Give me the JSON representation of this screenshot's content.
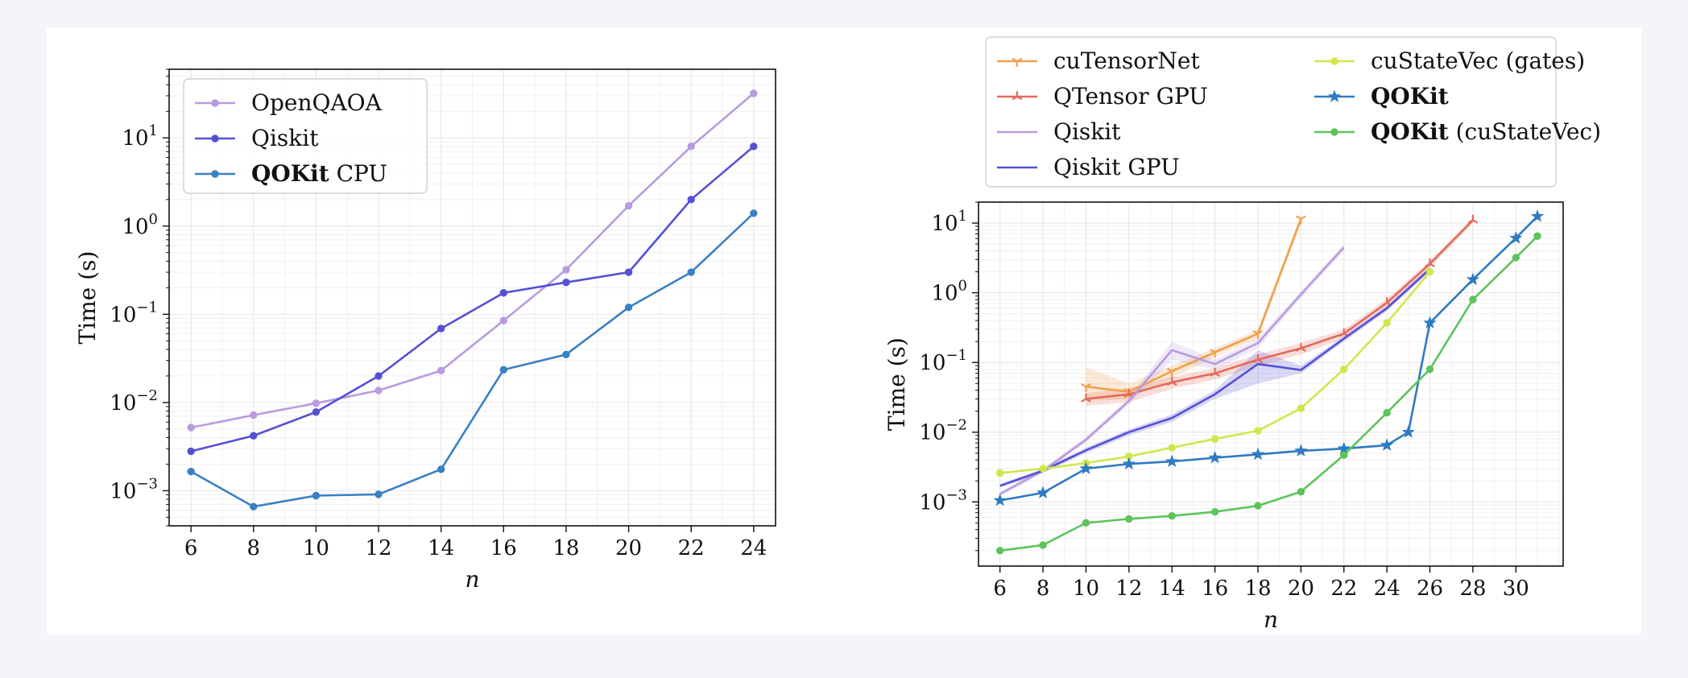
{
  "chart_data": [
    {
      "type": "line",
      "xlabel": "n",
      "ylabel": "Time (s)",
      "yscale": "log",
      "ylim": [
        0.0004,
        60
      ],
      "xlim": [
        5.3,
        24.7
      ],
      "x_ticks": [
        6,
        8,
        10,
        12,
        14,
        16,
        18,
        20,
        22,
        24
      ],
      "y_ticks": [
        {
          "value": 0.001,
          "base": "10",
          "exp": "−3"
        },
        {
          "value": 0.01,
          "base": "10",
          "exp": "−2"
        },
        {
          "value": 0.1,
          "base": "10",
          "exp": "−1"
        },
        {
          "value": 1,
          "base": "10",
          "exp": "0"
        },
        {
          "value": 10,
          "base": "10",
          "exp": "1"
        }
      ],
      "grid": true,
      "legend_position": "upper-left",
      "series": [
        {
          "name": "OpenQAOA",
          "name_parts": [
            {
              "text": "OpenQAOA",
              "bold": false
            }
          ],
          "color": "#b89be0",
          "marker": "circle",
          "x": [
            6,
            8,
            10,
            12,
            14,
            16,
            18,
            20,
            22,
            24
          ],
          "values": [
            0.0052,
            0.0072,
            0.0098,
            0.0137,
            0.023,
            0.085,
            0.32,
            1.7,
            8.0,
            32.0
          ]
        },
        {
          "name": "Qiskit",
          "name_parts": [
            {
              "text": "Qiskit",
              "bold": false
            }
          ],
          "color": "#5550d6",
          "marker": "circle",
          "x": [
            6,
            8,
            10,
            12,
            14,
            16,
            18,
            20,
            22,
            24
          ],
          "values": [
            0.0028,
            0.0042,
            0.0078,
            0.02,
            0.069,
            0.175,
            0.23,
            0.3,
            2.0,
            8.0
          ]
        },
        {
          "name": "QOKit CPU",
          "name_parts": [
            {
              "text": "QOKit",
              "bold": true
            },
            {
              "text": " CPU",
              "bold": false
            }
          ],
          "color": "#3a80c4",
          "marker": "circle",
          "x": [
            6,
            8,
            10,
            12,
            14,
            16,
            18,
            20,
            22,
            24
          ],
          "values": [
            0.00165,
            0.00066,
            0.00088,
            0.00091,
            0.00175,
            0.0235,
            0.035,
            0.12,
            0.3,
            1.4
          ]
        }
      ]
    },
    {
      "type": "line",
      "xlabel": "n",
      "ylabel": "Time (s)",
      "yscale": "log",
      "ylim": [
        0.00012,
        20
      ],
      "xlim": [
        5.0,
        32.2
      ],
      "x_ticks": [
        6,
        8,
        10,
        12,
        14,
        16,
        18,
        20,
        22,
        24,
        26,
        28,
        30
      ],
      "y_ticks": [
        {
          "value": 0.001,
          "base": "10",
          "exp": "−3"
        },
        {
          "value": 0.01,
          "base": "10",
          "exp": "−2"
        },
        {
          "value": 0.1,
          "base": "10",
          "exp": "−1"
        },
        {
          "value": 1,
          "base": "10",
          "exp": "0"
        },
        {
          "value": 10,
          "base": "10",
          "exp": "1"
        }
      ],
      "grid": true,
      "legend_position": "above-plot",
      "series": [
        {
          "name": "cuTensorNet",
          "name_parts": [
            {
              "text": "cuTensorNet",
              "bold": false
            }
          ],
          "color": "#f0a04b",
          "marker": "tri_down",
          "x": [
            10,
            12,
            14,
            16,
            18,
            20
          ],
          "values": [
            0.045,
            0.038,
            0.075,
            0.14,
            0.26,
            11.5
          ],
          "band_low": [
            0.028,
            0.03,
            0.06,
            0.12,
            0.22,
            10
          ],
          "band_high": [
            0.085,
            0.05,
            0.09,
            0.16,
            0.3,
            13
          ]
        },
        {
          "name": "QTensor GPU",
          "name_parts": [
            {
              "text": "QTensor GPU",
              "bold": false
            }
          ],
          "color": "#e46a5a",
          "marker": "tri_up",
          "x": [
            10,
            12,
            14,
            16,
            18,
            20,
            22,
            24,
            26,
            28
          ],
          "values": [
            0.03,
            0.035,
            0.052,
            0.07,
            0.11,
            0.16,
            0.26,
            0.72,
            2.6,
            11.0
          ],
          "band_low": [
            0.024,
            0.027,
            0.042,
            0.057,
            0.09,
            0.13,
            0.22,
            0.62,
            2.3,
            10.0
          ],
          "band_high": [
            0.036,
            0.043,
            0.062,
            0.083,
            0.13,
            0.19,
            0.3,
            0.82,
            2.9,
            12.0
          ]
        },
        {
          "name": "Qiskit",
          "name_parts": [
            {
              "text": "Qiskit",
              "bold": false
            }
          ],
          "color": "#b89be0",
          "marker": "none",
          "x": [
            6,
            8,
            10,
            12,
            14,
            16,
            18,
            20,
            22
          ],
          "values": [
            0.0013,
            0.0028,
            0.0078,
            0.028,
            0.15,
            0.095,
            0.19,
            0.95,
            4.5
          ],
          "band_low": [
            0.0012,
            0.0026,
            0.0072,
            0.025,
            0.11,
            0.08,
            0.16,
            0.85,
            4.0
          ],
          "band_high": [
            0.0014,
            0.003,
            0.0085,
            0.031,
            0.2,
            0.11,
            0.22,
            1.05,
            5.0
          ]
        },
        {
          "name": "Qiskit GPU",
          "name_parts": [
            {
              "text": "Qiskit GPU",
              "bold": false
            }
          ],
          "color": "#5550d6",
          "marker": "none",
          "x": [
            6,
            8,
            10,
            12,
            14,
            16,
            18,
            20,
            22,
            24,
            26
          ],
          "values": [
            0.0017,
            0.0028,
            0.0055,
            0.01,
            0.016,
            0.035,
            0.095,
            0.078,
            0.22,
            0.6,
            2.2
          ],
          "band_low": [
            0.0016,
            0.0026,
            0.005,
            0.009,
            0.014,
            0.03,
            0.05,
            0.07,
            0.2,
            0.55,
            2.0
          ],
          "band_high": [
            0.0018,
            0.003,
            0.006,
            0.011,
            0.018,
            0.04,
            0.15,
            0.09,
            0.24,
            0.65,
            2.4
          ]
        },
        {
          "name": "cuStateVec (gates)",
          "name_parts": [
            {
              "text": "cuStateVec (gates)",
              "bold": false
            }
          ],
          "color": "#d2e64a",
          "marker": "circle",
          "x": [
            6,
            8,
            10,
            12,
            14,
            16,
            18,
            20,
            22,
            24,
            26
          ],
          "values": [
            0.0026,
            0.003,
            0.0036,
            0.0045,
            0.006,
            0.008,
            0.0105,
            0.022,
            0.08,
            0.37,
            2.0
          ]
        },
        {
          "name": "QOKit",
          "name_parts": [
            {
              "text": "QOKit",
              "bold": true
            }
          ],
          "color": "#2f7ac1",
          "marker": "star",
          "x": [
            6,
            8,
            10,
            12,
            14,
            16,
            18,
            20,
            22,
            24,
            25,
            26,
            28,
            30,
            31
          ],
          "values": [
            0.00105,
            0.00135,
            0.003,
            0.0035,
            0.0038,
            0.0043,
            0.0048,
            0.0054,
            0.0058,
            0.0065,
            0.01,
            0.37,
            1.55,
            6.1,
            12.5
          ]
        },
        {
          "name": "QOKit (cuStateVec)",
          "name_parts": [
            {
              "text": "QOKit",
              "bold": true
            },
            {
              "text": " (cuStateVec)",
              "bold": false
            }
          ],
          "color": "#5cc45a",
          "marker": "circle",
          "x": [
            6,
            8,
            10,
            12,
            14,
            16,
            18,
            20,
            22,
            24,
            26,
            28,
            30,
            31
          ],
          "values": [
            0.0002,
            0.00024,
            0.0005,
            0.00057,
            0.00063,
            0.00072,
            0.00088,
            0.0014,
            0.0047,
            0.019,
            0.08,
            0.8,
            3.2,
            6.5
          ]
        }
      ]
    }
  ]
}
